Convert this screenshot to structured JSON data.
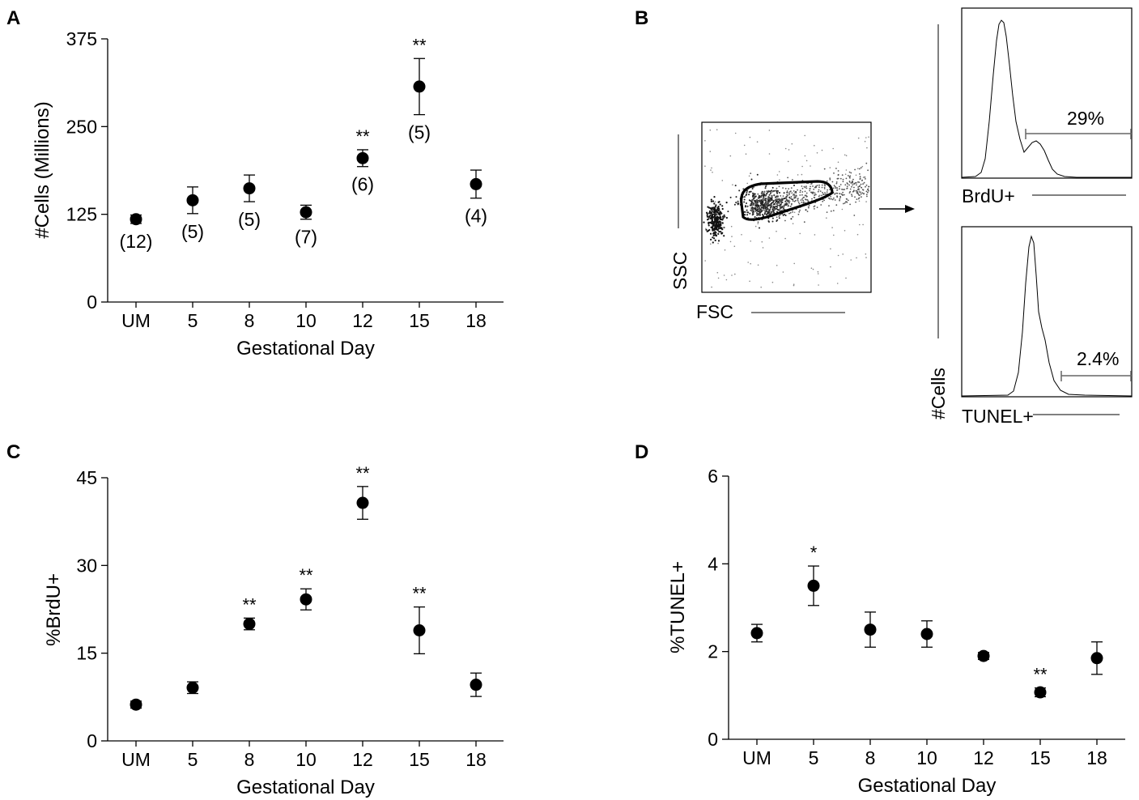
{
  "panels": {
    "A": {
      "letter": "A"
    },
    "B": {
      "letter": "B"
    },
    "C": {
      "letter": "C"
    },
    "D": {
      "letter": "D"
    }
  },
  "chart_data": [
    {
      "panel": "A",
      "type": "scatter",
      "xlabel": "Gestational Day",
      "ylabel": "#Cells (Millions)",
      "categories": [
        "UM",
        "5",
        "8",
        "10",
        "12",
        "15",
        "18"
      ],
      "yticks": [
        "0",
        "125",
        "250",
        "375"
      ],
      "ylim": [
        0,
        375
      ],
      "series": [
        {
          "values": [
            118,
            145,
            162,
            128,
            205,
            307,
            168
          ],
          "error": [
            6,
            19,
            19,
            10,
            12,
            40,
            20
          ],
          "n": [
            "(12)",
            "(5)",
            "(5)",
            "(7)",
            "(6)",
            "(5)",
            "(4)"
          ],
          "significance": [
            "",
            "",
            "",
            "",
            "**",
            "**",
            ""
          ]
        }
      ],
      "grid": false,
      "marker": "filled-circle"
    },
    {
      "panel": "C",
      "type": "scatter",
      "xlabel": "Gestational Day",
      "ylabel": "%BrdU+",
      "categories": [
        "UM",
        "5",
        "8",
        "10",
        "12",
        "15",
        "18"
      ],
      "yticks": [
        "0",
        "15",
        "30",
        "45"
      ],
      "ylim": [
        0,
        45
      ],
      "series": [
        {
          "values": [
            6.2,
            9.1,
            20.0,
            24.2,
            40.7,
            18.9,
            9.6
          ],
          "error": [
            0.6,
            1.0,
            1.0,
            1.8,
            2.8,
            4.0,
            2.0
          ],
          "significance": [
            "",
            "",
            "**",
            "**",
            "**",
            "**",
            ""
          ]
        }
      ],
      "grid": false,
      "marker": "filled-circle"
    },
    {
      "panel": "D",
      "type": "scatter",
      "xlabel": "Gestational Day",
      "ylabel": "%TUNEL+",
      "categories": [
        "UM",
        "5",
        "8",
        "10",
        "12",
        "15",
        "18"
      ],
      "yticks": [
        "0",
        "2",
        "4",
        "6"
      ],
      "ylim": [
        0,
        6
      ],
      "series": [
        {
          "values": [
            2.42,
            3.5,
            2.5,
            2.4,
            1.9,
            1.07,
            1.85
          ],
          "error": [
            0.2,
            0.45,
            0.4,
            0.3,
            0.08,
            0.1,
            0.37
          ],
          "significance": [
            "",
            "*",
            "",
            "",
            "",
            "**",
            ""
          ]
        }
      ],
      "grid": false,
      "marker": "filled-circle"
    }
  ],
  "flow": {
    "scatter": {
      "xlabel": "FSC",
      "ylabel": "SSC"
    },
    "hist_ylabel": "#Cells",
    "brdu": {
      "label": "BrdU+",
      "gate_value": "29%"
    },
    "tunel": {
      "label": "TUNEL+",
      "gate_value": "2.4%"
    }
  }
}
